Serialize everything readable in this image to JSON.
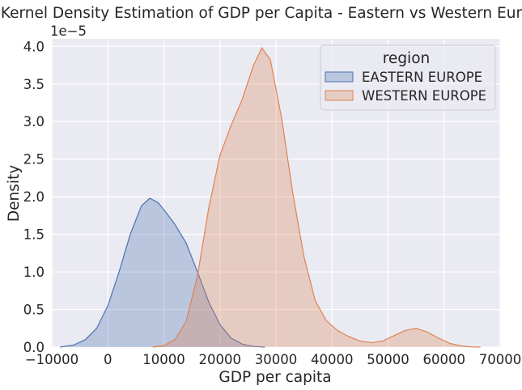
{
  "chart_data": {
    "type": "area",
    "title": "Kernel Density Estimation of GDP per Capita - Eastern vs Western Europe",
    "xlabel": "GDP per capita",
    "ylabel": "Density",
    "y_offset_label": "1e−5",
    "xlim": [
      -10000,
      70000
    ],
    "ylim": [
      0,
      4.1
    ],
    "y_scale_note": "y values shown in units of 1e-5",
    "x_ticks": [
      -10000,
      0,
      10000,
      20000,
      30000,
      40000,
      50000,
      60000,
      70000
    ],
    "x_tick_labels": [
      "−10000",
      "0",
      "10000",
      "20000",
      "30000",
      "40000",
      "50000",
      "60000",
      "70000"
    ],
    "y_ticks": [
      0,
      0.5,
      1.0,
      1.5,
      2.0,
      2.5,
      3.0,
      3.5,
      4.0
    ],
    "y_tick_labels": [
      "0.0",
      "0.5",
      "1.0",
      "1.5",
      "2.0",
      "2.5",
      "3.0",
      "3.5",
      "4.0"
    ],
    "grid": true,
    "legend": {
      "title": "region",
      "placement": "upper-right"
    },
    "series": [
      {
        "name": "EASTERN EUROPE",
        "color": "#4c72b0",
        "fill": "#4c72b0",
        "x": [
          -8500,
          -6000,
          -4000,
          -2000,
          0,
          2000,
          4000,
          6000,
          7500,
          9000,
          10500,
          12000,
          14000,
          16000,
          18000,
          20000,
          22000,
          24000,
          26000,
          28000
        ],
        "y": [
          0.0,
          0.03,
          0.1,
          0.25,
          0.55,
          1.0,
          1.5,
          1.88,
          1.98,
          1.92,
          1.78,
          1.63,
          1.38,
          1.0,
          0.6,
          0.3,
          0.12,
          0.04,
          0.01,
          0.0
        ]
      },
      {
        "name": "WESTERN EUROPE",
        "color": "#dd8452",
        "fill": "#dd8452",
        "x": [
          8000,
          10000,
          12000,
          14000,
          16000,
          18000,
          20000,
          22000,
          24000,
          26000,
          27500,
          29000,
          31000,
          33000,
          35000,
          37000,
          39000,
          41000,
          43000,
          45000,
          47000,
          49000,
          51000,
          53000,
          55000,
          57000,
          59000,
          61000,
          63000,
          65000,
          66500
        ],
        "y": [
          0.0,
          0.02,
          0.1,
          0.35,
          0.95,
          1.85,
          2.55,
          2.95,
          3.3,
          3.75,
          3.98,
          3.82,
          3.05,
          2.05,
          1.2,
          0.62,
          0.35,
          0.22,
          0.14,
          0.08,
          0.06,
          0.08,
          0.15,
          0.22,
          0.25,
          0.2,
          0.12,
          0.05,
          0.015,
          0.003,
          0.0
        ]
      }
    ]
  }
}
